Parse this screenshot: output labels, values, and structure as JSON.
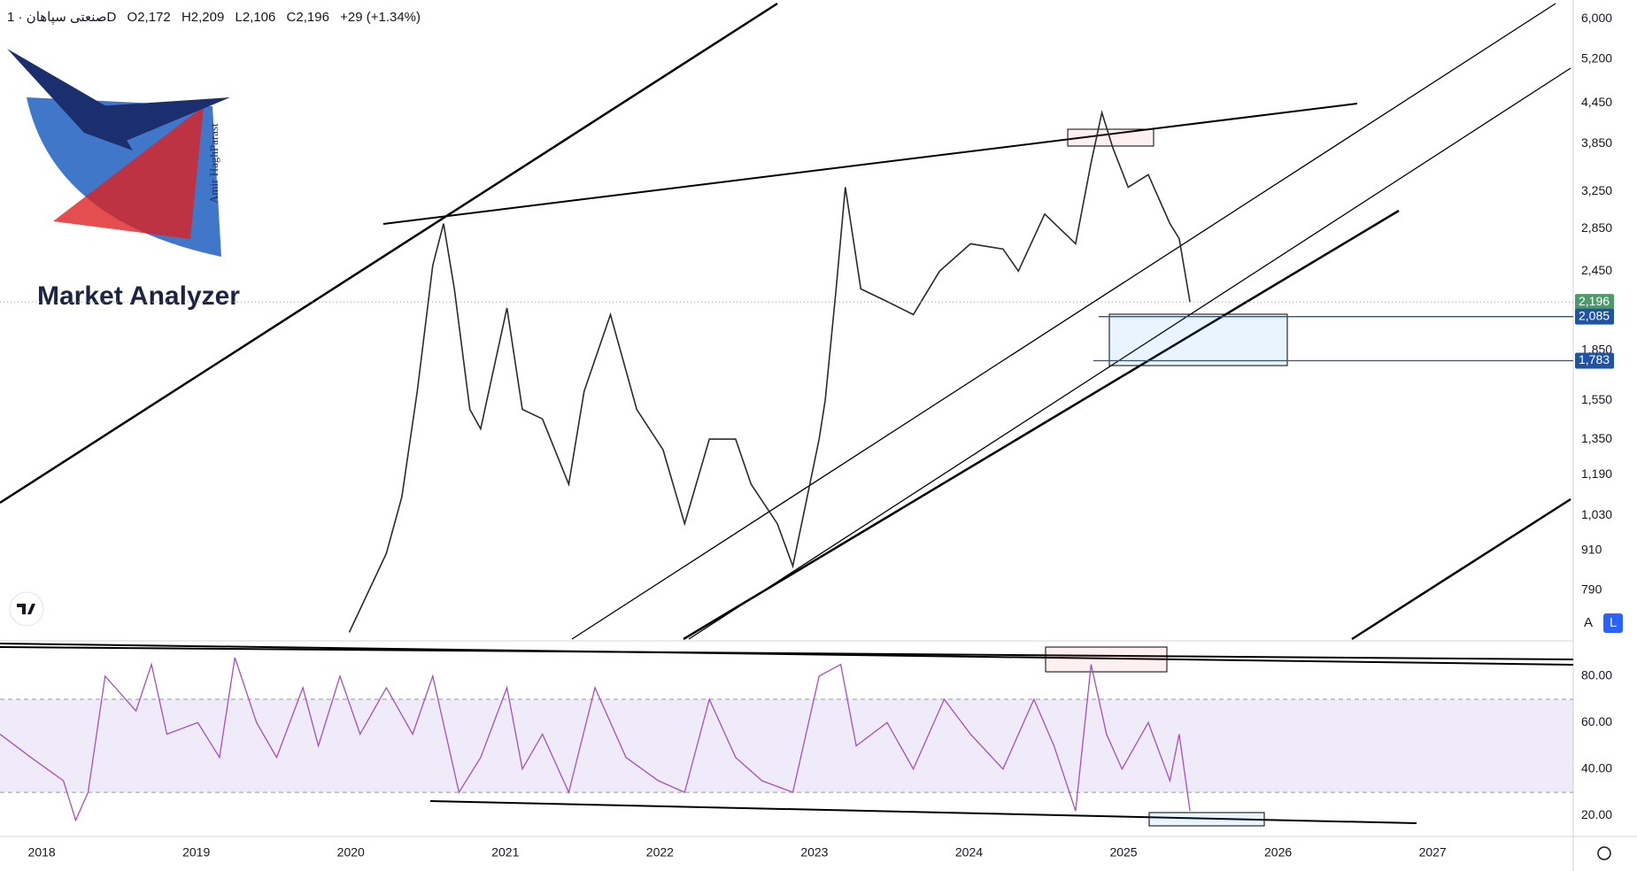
{
  "header": {
    "symbol": "صنعتی سپاهان · 1D",
    "open": "O2,172",
    "high": "H2,209",
    "low": "L2,106",
    "close": "C2,196",
    "change": "+29 (+1.34%)"
  },
  "logo": {
    "title": "Market Analyzer",
    "author": "Amir HaghParast"
  },
  "ui": {
    "buttons": [
      "A",
      "L"
    ]
  },
  "chart_data": [
    {
      "type": "line",
      "log_scale": true,
      "color": "#2b2b2b",
      "x": [
        2019.99,
        2020.23,
        2020.33,
        2020.43,
        2020.53,
        2020.6,
        2020.67,
        2020.77,
        2020.84,
        2021.01,
        2021.11,
        2021.24,
        2021.41,
        2021.51,
        2021.68,
        2021.85,
        2022.02,
        2022.16,
        2022.32,
        2022.49,
        2022.59,
        2022.76,
        2022.86,
        2022.97,
        2023.03,
        2023.07,
        2023.14,
        2023.2,
        2023.3,
        2023.47,
        2023.64,
        2023.81,
        2024.01,
        2024.22,
        2024.32,
        2024.49,
        2024.69,
        2024.79,
        2024.86,
        2024.93,
        2025.03,
        2025.16,
        2025.3,
        2025.36,
        2025.43
      ],
      "values": [
        680,
        900,
        1100,
        1600,
        2500,
        2900,
        2300,
        1500,
        1400,
        2150,
        1500,
        1450,
        1150,
        1600,
        2100,
        1500,
        1300,
        1000,
        1350,
        1350,
        1150,
        1000,
        860,
        1150,
        1350,
        1550,
        2300,
        3300,
        2300,
        2200,
        2100,
        2450,
        2700,
        2650,
        2450,
        3000,
        2700,
        3600,
        4300,
        3800,
        3300,
        3450,
        2900,
        2750,
        2196
      ],
      "xlim": [
        2017.73,
        2027.91
      ],
      "xticks": [
        2018,
        2019,
        2020,
        2021,
        2022,
        2023,
        2024,
        2025,
        2026,
        2027
      ],
      "ylim": [
        664,
        6412
      ],
      "yticks": [
        {
          "value": 6000,
          "label": "6,000"
        },
        {
          "value": 5200,
          "label": "5,200"
        },
        {
          "value": 4450,
          "label": "4,450"
        },
        {
          "value": 3850,
          "label": "3,850"
        },
        {
          "value": 3250,
          "label": "3,250"
        },
        {
          "value": 2850,
          "label": "2,850"
        },
        {
          "value": 2450,
          "label": "2,450"
        },
        {
          "value": 1850,
          "label": "1,850"
        },
        {
          "value": 1550,
          "label": "1,550"
        },
        {
          "value": 1350,
          "label": "1,350"
        },
        {
          "value": 1190,
          "label": "1,190"
        },
        {
          "value": 1030,
          "label": "1,030"
        },
        910,
        790
      ],
      "last_price": {
        "value": 2196,
        "label": "2,196"
      },
      "levels": [
        {
          "value": 2085,
          "label": "2,085"
        },
        {
          "value": 1783,
          "label": "1,783"
        }
      ]
    },
    {
      "type": "line",
      "color": "#a350c4",
      "x": [
        2017.73,
        2017.93,
        2018.14,
        2018.22,
        2018.3,
        2018.41,
        2018.61,
        2018.71,
        2018.81,
        2019.01,
        2019.15,
        2019.25,
        2019.39,
        2019.52,
        2019.69,
        2019.79,
        2019.93,
        2020.06,
        2020.23,
        2020.4,
        2020.53,
        2020.7,
        2020.84,
        2021.01,
        2021.11,
        2021.24,
        2021.41,
        2021.58,
        2021.78,
        2021.99,
        2022.16,
        2022.32,
        2022.49,
        2022.66,
        2022.86,
        2023.03,
        2023.17,
        2023.27,
        2023.47,
        2023.64,
        2023.84,
        2024.01,
        2024.22,
        2024.42,
        2024.55,
        2024.69,
        2024.79,
        2024.89,
        2024.99,
        2025.16,
        2025.3,
        2025.36,
        2025.43
      ],
      "values": [
        55,
        45,
        35,
        18,
        30,
        80,
        65,
        85,
        55,
        60,
        45,
        88,
        60,
        45,
        75,
        50,
        80,
        55,
        75,
        55,
        80,
        30,
        45,
        75,
        40,
        55,
        30,
        75,
        45,
        35,
        30,
        70,
        45,
        35,
        30,
        80,
        85,
        50,
        60,
        40,
        70,
        55,
        40,
        70,
        50,
        22,
        85,
        55,
        40,
        60,
        35,
        55,
        22
      ],
      "xlim": [
        2017.73,
        2027.91
      ],
      "ylim": [
        11,
        94
      ],
      "yticks": [
        {
          "value": 80,
          "label": "80.00"
        },
        {
          "value": 60,
          "label": "60.00"
        },
        {
          "value": 40,
          "label": "40.00"
        },
        {
          "value": 20,
          "label": "20.00"
        }
      ],
      "band": [
        30,
        70
      ]
    }
  ]
}
